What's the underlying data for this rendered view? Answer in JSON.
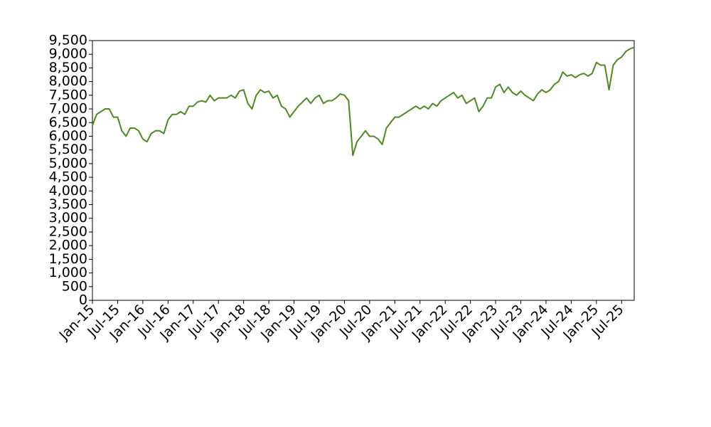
{
  "chart_data": {
    "type": "line",
    "categories": [
      "Jan-15",
      null,
      null,
      null,
      null,
      null,
      "Jul-15",
      null,
      null,
      null,
      null,
      null,
      "Jan-16",
      null,
      null,
      null,
      null,
      null,
      "Jul-16",
      null,
      null,
      null,
      null,
      null,
      "Jan-17",
      null,
      null,
      null,
      null,
      null,
      "Jul-17",
      null,
      null,
      null,
      null,
      null,
      "Jan-18",
      null,
      null,
      null,
      null,
      null,
      "Jul-18",
      null,
      null,
      null,
      null,
      null,
      "Jan-19",
      null,
      null,
      null,
      null,
      null,
      "Jul-19",
      null,
      null,
      null,
      null,
      null,
      "Jan-20",
      null,
      null,
      null,
      null,
      null,
      "Jul-20",
      null,
      null,
      null,
      null,
      null,
      "Jan-21",
      null,
      null,
      null,
      null,
      null,
      "Jul-21",
      null,
      null,
      null,
      null,
      null,
      "Jan-22",
      null,
      null,
      null,
      null,
      null,
      "Jul-22",
      null,
      null,
      null,
      null,
      null,
      "Jan-23",
      null,
      null,
      null,
      null,
      null,
      "Jul-23",
      null,
      null,
      null,
      null,
      null,
      "Jan-24",
      null,
      null,
      null,
      null,
      null,
      "Jul-24",
      null,
      null,
      null,
      null,
      null,
      "Jan-25",
      null,
      null,
      null,
      null,
      null,
      "Jul-25",
      null,
      null,
      null
    ],
    "values": [
      6400,
      6800,
      6900,
      7000,
      7000,
      6700,
      6700,
      6200,
      6000,
      6300,
      6300,
      6200,
      5900,
      5800,
      6100,
      6200,
      6200,
      6100,
      6600,
      6800,
      6800,
      6900,
      6800,
      7100,
      7100,
      7250,
      7300,
      7250,
      7500,
      7300,
      7400,
      7400,
      7400,
      7500,
      7400,
      7650,
      7700,
      7200,
      7000,
      7500,
      7700,
      7600,
      7650,
      7400,
      7500,
      7100,
      7000,
      6700,
      6900,
      7100,
      7250,
      7400,
      7200,
      7400,
      7500,
      7200,
      7300,
      7300,
      7400,
      7550,
      7500,
      7300,
      5300,
      5800,
      6000,
      6200,
      6000,
      6000,
      5900,
      5700,
      6300,
      6500,
      6700,
      6700,
      6800,
      6900,
      7000,
      7100,
      7000,
      7100,
      7000,
      7200,
      7100,
      7300,
      7400,
      7500,
      7600,
      7400,
      7500,
      7200,
      7300,
      7400,
      6900,
      7100,
      7400,
      7400,
      7800,
      7900,
      7600,
      7800,
      7600,
      7500,
      7650,
      7500,
      7400,
      7300,
      7550,
      7700,
      7600,
      7700,
      7900,
      8000,
      8350,
      8200,
      8250,
      8150,
      8250,
      8300,
      8200,
      8300,
      8700,
      8600,
      8600,
      7700,
      8600,
      8800,
      8900,
      9100,
      9200,
      9250
    ],
    "color": "#4d8a1f",
    "ylim": [
      0,
      9500
    ],
    "yticks": [
      0,
      500,
      {
        "value": 1000,
        "label": "1,000"
      },
      {
        "value": 1500,
        "label": "1,500"
      },
      {
        "value": 2000,
        "label": "2,000"
      },
      {
        "value": 2500,
        "label": "2,500"
      },
      {
        "value": 3000,
        "label": "3,000"
      },
      {
        "value": 3500,
        "label": "3,500"
      },
      {
        "value": 4000,
        "label": "4,000"
      },
      {
        "value": 4500,
        "label": "4,500"
      },
      {
        "value": 5000,
        "label": "5,000"
      },
      {
        "value": 5500,
        "label": "5,500"
      },
      {
        "value": 6000,
        "label": "6,000"
      },
      {
        "value": 6500,
        "label": "6,500"
      },
      {
        "value": 7000,
        "label": "7,000"
      },
      {
        "value": 7500,
        "label": "7,500"
      },
      {
        "value": 8000,
        "label": "8,000"
      },
      {
        "value": 8500,
        "label": "8,500"
      },
      {
        "value": 9000,
        "label": "9,000"
      },
      {
        "value": 9500,
        "label": "9,500"
      }
    ]
  }
}
